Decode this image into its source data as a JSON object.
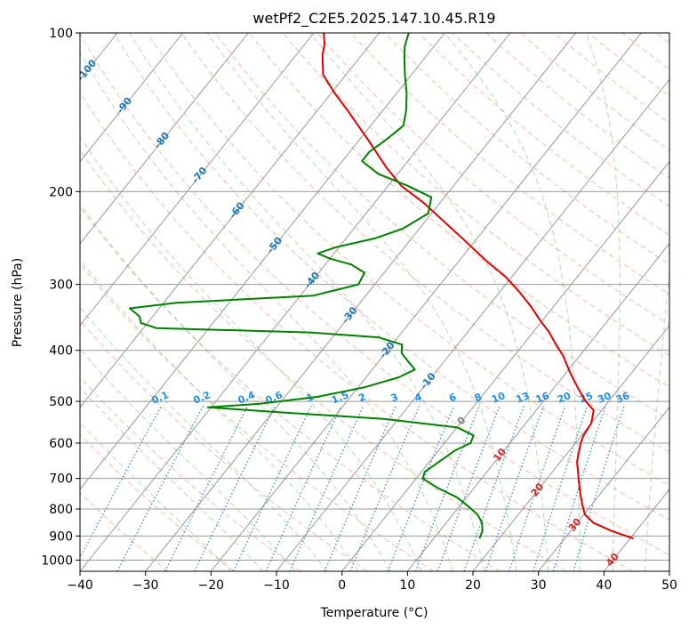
{
  "title": "wetPf2_C2E5.2025.147.10.45.R19",
  "xlabel": "Temperature (°C)",
  "ylabel": "Pressure (hPa)",
  "colors": {
    "temperature": "#e00000",
    "dewpoint": "#008000",
    "isotherm": "#999999",
    "dry_adiabat": "#ff8060",
    "moist_adiabat": "#66bb66",
    "mixing_ratio": "#2a7fd4",
    "mixing_label": "#1f8fe6",
    "isotherm_label": "#1f77b4",
    "isotherm_label_warm": "#d62728",
    "isotherm_label_zero": "#7f7f7f"
  },
  "chart_data": {
    "type": "line",
    "subtype": "skew-T log-P diagram",
    "title": "wetPf2_C2E5.2025.147.10.45.R19",
    "xlabel": "Temperature (°C)",
    "ylabel": "Pressure (hPa)",
    "xlim": [
      -40,
      50
    ],
    "ylim": [
      1050,
      100
    ],
    "y_scale": "log",
    "x_ticks": [
      -40,
      -30,
      -20,
      -10,
      0,
      10,
      20,
      30,
      40,
      50
    ],
    "y_ticks": [
      100,
      200,
      300,
      400,
      500,
      600,
      700,
      800,
      900,
      1000
    ],
    "grid": true,
    "isotherm_labels": [
      -100,
      -90,
      -80,
      -70,
      -60,
      -50,
      -40,
      -30,
      -20,
      -10,
      0,
      10,
      20,
      30,
      40
    ],
    "mixing_ratio_labels": [
      "0.1",
      "0.2",
      "0.4",
      "0.6",
      "1",
      "1.5",
      "2",
      "3",
      "4",
      "6",
      "8",
      "10",
      "13",
      "16",
      "20",
      "25",
      "30",
      "36"
    ],
    "series": [
      {
        "role": "temperature",
        "points": [
          {
            "p": 910,
            "t": 40.5
          },
          {
            "p": 880,
            "t": 36.2
          },
          {
            "p": 850,
            "t": 32.5
          },
          {
            "p": 820,
            "t": 30.2
          },
          {
            "p": 790,
            "t": 28.8
          },
          {
            "p": 750,
            "t": 27.0
          },
          {
            "p": 700,
            "t": 24.8
          },
          {
            "p": 650,
            "t": 22.5
          },
          {
            "p": 600,
            "t": 20.8
          },
          {
            "p": 580,
            "t": 20.3
          },
          {
            "p": 550,
            "t": 20.0
          },
          {
            "p": 520,
            "t": 18.8
          },
          {
            "p": 500,
            "t": 16.5
          },
          {
            "p": 470,
            "t": 13.5
          },
          {
            "p": 440,
            "t": 10.5
          },
          {
            "p": 410,
            "t": 7.5
          },
          {
            "p": 390,
            "t": 5.0
          },
          {
            "p": 370,
            "t": 2.5
          },
          {
            "p": 350,
            "t": -0.5
          },
          {
            "p": 330,
            "t": -3.5
          },
          {
            "p": 310,
            "t": -7.0
          },
          {
            "p": 290,
            "t": -11.0
          },
          {
            "p": 270,
            "t": -16.0
          },
          {
            "p": 250,
            "t": -21.0
          },
          {
            "p": 230,
            "t": -26.5
          },
          {
            "p": 210,
            "t": -32.5
          },
          {
            "p": 195,
            "t": -38.0
          },
          {
            "p": 180,
            "t": -42.5
          },
          {
            "p": 160,
            "t": -48.5
          },
          {
            "p": 140,
            "t": -55.5
          },
          {
            "p": 130,
            "t": -59.5
          },
          {
            "p": 120,
            "t": -63.5
          },
          {
            "p": 110,
            "t": -66.0
          },
          {
            "p": 105,
            "t": -67.0
          },
          {
            "p": 100,
            "t": -68.5
          }
        ]
      },
      {
        "role": "dewpoint",
        "points": [
          {
            "p": 910,
            "t": 17.0
          },
          {
            "p": 880,
            "t": 16.5
          },
          {
            "p": 850,
            "t": 15.5
          },
          {
            "p": 820,
            "t": 13.8
          },
          {
            "p": 790,
            "t": 11.3
          },
          {
            "p": 760,
            "t": 8.5
          },
          {
            "p": 730,
            "t": 4.5
          },
          {
            "p": 700,
            "t": 1.0
          },
          {
            "p": 680,
            "t": 0.5
          },
          {
            "p": 650,
            "t": 1.5
          },
          {
            "p": 620,
            "t": 2.5
          },
          {
            "p": 600,
            "t": 4.0
          },
          {
            "p": 580,
            "t": 3.5
          },
          {
            "p": 560,
            "t": 0.0
          },
          {
            "p": 540,
            "t": -12.0
          },
          {
            "p": 525,
            "t": -28.0
          },
          {
            "p": 513,
            "t": -40.5
          },
          {
            "p": 505,
            "t": -33.0
          },
          {
            "p": 490,
            "t": -25.0
          },
          {
            "p": 470,
            "t": -19.0
          },
          {
            "p": 450,
            "t": -15.0
          },
          {
            "p": 435,
            "t": -13.5
          },
          {
            "p": 420,
            "t": -15.5
          },
          {
            "p": 405,
            "t": -17.5
          },
          {
            "p": 390,
            "t": -18.5
          },
          {
            "p": 378,
            "t": -23.0
          },
          {
            "p": 370,
            "t": -34.0
          },
          {
            "p": 363,
            "t": -58.0
          },
          {
            "p": 355,
            "t": -61.0
          },
          {
            "p": 345,
            "t": -62.0
          },
          {
            "p": 333,
            "t": -64.5
          },
          {
            "p": 325,
            "t": -58.0
          },
          {
            "p": 315,
            "t": -38.0
          },
          {
            "p": 300,
            "t": -32.5
          },
          {
            "p": 285,
            "t": -33.0
          },
          {
            "p": 275,
            "t": -36.0
          },
          {
            "p": 268,
            "t": -40.0
          },
          {
            "p": 262,
            "t": -42.5
          },
          {
            "p": 255,
            "t": -40.5
          },
          {
            "p": 245,
            "t": -35.5
          },
          {
            "p": 235,
            "t": -32.5
          },
          {
            "p": 220,
            "t": -30.5
          },
          {
            "p": 205,
            "t": -32.0
          },
          {
            "p": 195,
            "t": -37.0
          },
          {
            "p": 185,
            "t": -43.0
          },
          {
            "p": 175,
            "t": -47.0
          },
          {
            "p": 168,
            "t": -47.0
          },
          {
            "p": 160,
            "t": -46.0
          },
          {
            "p": 150,
            "t": -45.0
          },
          {
            "p": 140,
            "t": -46.5
          },
          {
            "p": 130,
            "t": -48.5
          },
          {
            "p": 120,
            "t": -51.0
          },
          {
            "p": 112,
            "t": -53.0
          },
          {
            "p": 106,
            "t": -54.5
          },
          {
            "p": 100,
            "t": -55.5
          }
        ]
      }
    ]
  }
}
